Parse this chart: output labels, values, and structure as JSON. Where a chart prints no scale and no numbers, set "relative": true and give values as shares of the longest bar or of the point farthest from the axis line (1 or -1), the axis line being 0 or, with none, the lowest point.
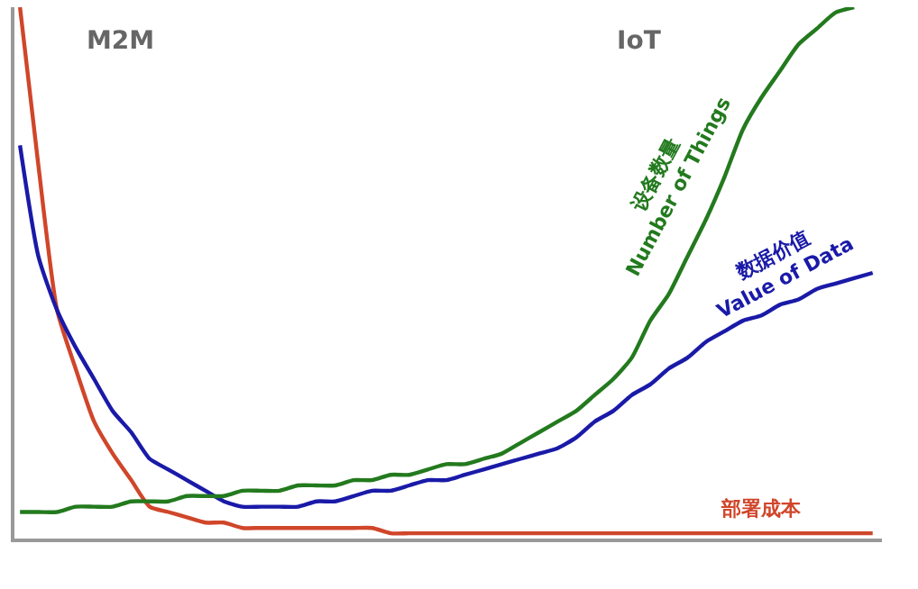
{
  "chart_data": {
    "type": "line",
    "relative": true,
    "legend": false,
    "marker": "none",
    "line_style": "solid",
    "categories": [
      null,
      null,
      null,
      null,
      null,
      null,
      null,
      null,
      null,
      null,
      null,
      null,
      null,
      null,
      null,
      null,
      null,
      null,
      null,
      null,
      null,
      null,
      null,
      null,
      null,
      null,
      null,
      null,
      null,
      null,
      null,
      null,
      null,
      null,
      null,
      null,
      null,
      null,
      null,
      null,
      null,
      null,
      null,
      null,
      null,
      null,
      null
    ],
    "annotations": [
      "M2M",
      "IoT"
    ],
    "series": [
      {
        "name": "部署成本",
        "color": "#d0462a",
        "values": [
          1.0,
          0.7,
          0.43,
          0.32,
          0.22,
          0.16,
          0.11,
          0.06,
          0.05,
          0.04,
          0.03,
          0.03,
          0.02,
          0.02,
          0.02,
          0.02,
          0.02,
          0.02,
          0.02,
          0.02,
          0.01,
          0.01,
          0.01,
          0.01,
          0.01,
          0.01,
          0.01,
          0.01,
          0.01,
          0.01,
          0.01,
          0.01,
          0.01,
          0.01,
          0.01,
          0.01,
          0.01,
          0.01,
          0.01,
          0.01,
          0.01,
          0.01,
          0.01,
          0.01,
          0.01,
          0.01,
          0.01
        ]
      },
      {
        "name": "数据价值 Value of Data",
        "color": "#1a1aa8",
        "values": [
          0.74,
          0.53,
          0.43,
          0.36,
          0.3,
          0.24,
          0.2,
          0.15,
          0.13,
          0.11,
          0.09,
          0.07,
          0.06,
          0.06,
          0.06,
          0.06,
          0.07,
          0.07,
          0.08,
          0.09,
          0.09,
          0.1,
          0.11,
          0.11,
          0.12,
          0.13,
          0.14,
          0.15,
          0.16,
          0.17,
          0.19,
          0.22,
          0.24,
          0.27,
          0.29,
          0.32,
          0.34,
          0.37,
          0.39,
          0.41,
          0.42,
          0.44,
          0.45,
          0.47,
          0.48,
          0.49,
          0.5
        ]
      },
      {
        "name": "设备数量 Number of Things",
        "color": "#237a1e",
        "values": [
          0.05,
          0.05,
          0.05,
          0.06,
          0.06,
          0.06,
          0.07,
          0.07,
          0.07,
          0.08,
          0.08,
          0.08,
          0.09,
          0.09,
          0.09,
          0.1,
          0.1,
          0.1,
          0.11,
          0.11,
          0.12,
          0.12,
          0.13,
          0.14,
          0.14,
          0.15,
          0.16,
          0.18,
          0.2,
          0.22,
          0.24,
          0.27,
          0.3,
          0.34,
          0.41,
          0.46,
          0.53,
          0.6,
          0.68,
          0.77,
          0.83,
          0.88,
          0.93,
          0.96,
          0.99,
          1.0,
          null
        ]
      }
    ]
  }
}
